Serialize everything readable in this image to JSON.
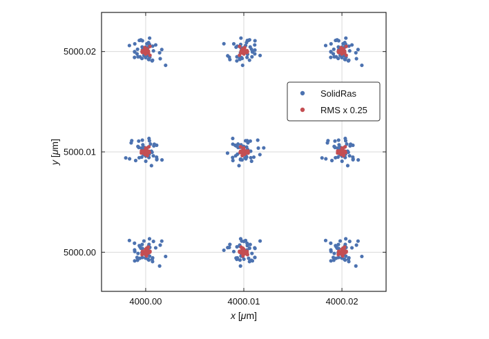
{
  "chart_data": {
    "type": "scatter",
    "title": "",
    "xlabel_parts": [
      "x",
      " [",
      "μ",
      "m]"
    ],
    "ylabel_parts": [
      "y",
      " [",
      "μ",
      "m]"
    ],
    "xlim": [
      3999.9955,
      4000.0245
    ],
    "ylim": [
      4999.9961,
      5000.0239
    ],
    "x_ticks": [
      4000.0,
      4000.01,
      4000.02
    ],
    "y_ticks": [
      5000.0,
      5000.01,
      5000.02
    ],
    "x_tick_labels": [
      "4000.00",
      "4000.01",
      "4000.02"
    ],
    "y_tick_labels": [
      "5000.00",
      "5000.01",
      "5000.02"
    ],
    "grid": true,
    "legend_position": "right",
    "grid_centers_x": [
      4000.0,
      4000.01,
      4000.02
    ],
    "grid_centers_y": [
      5000.0,
      5000.01,
      5000.02
    ],
    "series": [
      {
        "name": "SolidRas",
        "color": "#4c72b0",
        "offsets_x": [
          0.00164,
          0.00024,
          0.00012,
          -0.00049,
          0.00034,
          -0.00166,
          -0.00083,
          0.00029,
          -0.00113,
          0.00032,
          -0.00028,
          0.00042,
          -0.00033,
          0.00071,
          0.00079,
          -0.00058,
          -0.00111,
          -0.00088,
          -0.00036,
          0.00018,
          0.00021,
          -1e-05,
          0.00203,
          -0.00059,
          0.00142,
          -0.00018,
          -0.00078,
          0.0004,
          -0.00034,
          0.00039,
          0.00029,
          0.00148,
          -0.00114,
          0.00066,
          -1e-05,
          0.0007,
          0.00102,
          -0.00112,
          -0.00065,
          -0.00038
        ],
        "offsets_y": [
          0.00111,
          -0.0006,
          -0.0008,
          0.00134,
          0.00038,
          -0.00093,
          0.00077,
          -0.00069,
          -0.00137,
          0.0006,
          0.00015,
          -0.00056,
          0.00044,
          -0.00023,
          0.0002,
          0.00112,
          0.00023,
          0.00071,
          0.00108,
          -0.00086,
          0.00046,
          0.0004,
          -0.00012,
          -0.00078,
          0.0009,
          0.00054,
          0.00066,
          -0.00027,
          0.00078,
          -0.00039,
          0.0,
          -0.00071,
          7e-05,
          -4e-05,
          -0.00042,
          0.00117,
          -0.00052,
          0.00048,
          -0.00058,
          -0.00052
        ],
        "spread": 0.0013
      },
      {
        "name": "RMS x 0.25",
        "color": "#c44e52",
        "offsets_x": [
          7e-05,
          -0.00011,
          0.00043,
          -0.00033,
          0.00027,
          -0.00033,
          -7e-05,
          0.00044,
          -0.00016,
          8e-05,
          -9e-05,
          -1e-05,
          8e-05,
          -0.00037,
          0.00028,
          -4e-05,
          -0.00017,
          0.00015,
          -7e-05,
          0.00018
        ],
        "offsets_y": [
          0.0001,
          9e-05,
          6e-05,
          -0.00037,
          0.00039,
          -2e-05,
          2e-05,
          -0.00014,
          0.00051,
          9e-05,
          2e-05,
          -0.00024,
          -0.00011,
          0.00024,
          1e-05,
          -9e-05,
          -0.00011,
          0.00028,
          -7e-05,
          -7e-05
        ],
        "spread": 0.0007
      }
    ]
  }
}
